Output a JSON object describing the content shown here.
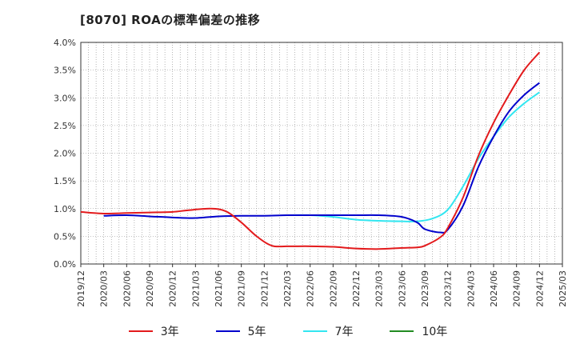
{
  "title": "[8070]  ROAの標準偏差の推移",
  "chart_data": {
    "type": "line",
    "title": "[8070]  ROAの標準偏差の推移",
    "xlabel": "",
    "ylabel": "",
    "x": [
      "2019/12",
      "2020/03",
      "2020/06",
      "2020/09",
      "2020/12",
      "2021/03",
      "2021/06",
      "2021/09",
      "2021/12",
      "2022/03",
      "2022/06",
      "2022/09",
      "2022/12",
      "2023/03",
      "2023/06",
      "2023/09",
      "2023/12",
      "2024/03",
      "2024/06",
      "2024/09",
      "2024/12",
      "2025/03"
    ],
    "ylim": [
      0,
      4.0
    ],
    "yticks": [
      "0.0%",
      "0.5%",
      "1.0%",
      "1.5%",
      "2.0%",
      "2.5%",
      "3.0%",
      "3.5%",
      "4.0%"
    ],
    "grid": true,
    "legend_position": "bottom",
    "series": [
      {
        "name": "3年",
        "color": "#e31a1c",
        "points": [
          [
            "2019/12",
            0.94
          ],
          [
            "2020/03",
            0.91
          ],
          [
            "2020/06",
            0.92
          ],
          [
            "2020/09",
            0.93
          ],
          [
            "2020/12",
            0.94
          ],
          [
            "2021/02",
            0.97
          ],
          [
            "2021/05",
            1.0
          ],
          [
            "2021/07",
            0.95
          ],
          [
            "2021/09",
            0.75
          ],
          [
            "2021/11",
            0.5
          ],
          [
            "2022/01",
            0.33
          ],
          [
            "2022/03",
            0.32
          ],
          [
            "2022/06",
            0.32
          ],
          [
            "2022/09",
            0.31
          ],
          [
            "2022/12",
            0.28
          ],
          [
            "2023/03",
            0.27
          ],
          [
            "2023/06",
            0.29
          ],
          [
            "2023/08",
            0.3
          ],
          [
            "2023/09",
            0.33
          ],
          [
            "2023/11",
            0.48
          ],
          [
            "2023/12",
            0.65
          ],
          [
            "2024/02",
            1.2
          ],
          [
            "2024/04",
            1.95
          ],
          [
            "2024/06",
            2.55
          ],
          [
            "2024/08",
            3.05
          ],
          [
            "2024/10",
            3.5
          ],
          [
            "2024/12",
            3.82
          ]
        ]
      },
      {
        "name": "5年",
        "color": "#0000cc",
        "points": [
          [
            "2020/03",
            0.87
          ],
          [
            "2020/06",
            0.88
          ],
          [
            "2020/09",
            0.86
          ],
          [
            "2020/12",
            0.84
          ],
          [
            "2021/03",
            0.83
          ],
          [
            "2021/06",
            0.86
          ],
          [
            "2021/09",
            0.87
          ],
          [
            "2021/12",
            0.87
          ],
          [
            "2022/03",
            0.88
          ],
          [
            "2022/06",
            0.88
          ],
          [
            "2022/09",
            0.88
          ],
          [
            "2022/12",
            0.88
          ],
          [
            "2023/03",
            0.88
          ],
          [
            "2023/06",
            0.85
          ],
          [
            "2023/08",
            0.75
          ],
          [
            "2023/09",
            0.63
          ],
          [
            "2023/11",
            0.57
          ],
          [
            "2023/12",
            0.62
          ],
          [
            "2024/02",
            1.05
          ],
          [
            "2024/04",
            1.75
          ],
          [
            "2024/06",
            2.3
          ],
          [
            "2024/08",
            2.75
          ],
          [
            "2024/10",
            3.05
          ],
          [
            "2024/12",
            3.27
          ]
        ]
      },
      {
        "name": "7年",
        "color": "#33e6f0",
        "points": [
          [
            "2022/03",
            0.88
          ],
          [
            "2022/06",
            0.88
          ],
          [
            "2022/09",
            0.85
          ],
          [
            "2022/12",
            0.8
          ],
          [
            "2023/03",
            0.78
          ],
          [
            "2023/06",
            0.77
          ],
          [
            "2023/08",
            0.77
          ],
          [
            "2023/10",
            0.82
          ],
          [
            "2023/12",
            0.98
          ],
          [
            "2024/02",
            1.4
          ],
          [
            "2024/04",
            1.9
          ],
          [
            "2024/06",
            2.3
          ],
          [
            "2024/08",
            2.65
          ],
          [
            "2024/10",
            2.9
          ],
          [
            "2024/12",
            3.1
          ]
        ]
      },
      {
        "name": "10年",
        "color": "#228b22",
        "points": []
      }
    ]
  }
}
